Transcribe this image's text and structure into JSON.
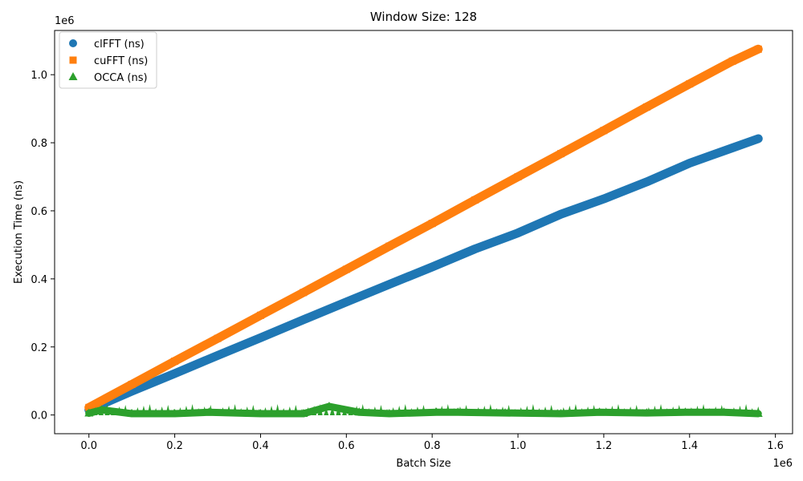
{
  "chart_data": {
    "type": "scatter",
    "title": "Window Size: 128",
    "xlabel": "Batch Size",
    "ylabel": "Execution Time (ns)",
    "x_offset_label": "1e6",
    "y_offset_label": "1e6",
    "xlim": [
      -80000,
      1640000
    ],
    "ylim": [
      -55000,
      1130000
    ],
    "x_ticks": [
      0,
      200000,
      400000,
      600000,
      800000,
      1000000,
      1200000,
      1400000,
      1600000
    ],
    "x_tick_labels": [
      "0.0",
      "0.2",
      "0.4",
      "0.6",
      "0.8",
      "1.0",
      "1.2",
      "1.4",
      "1.6"
    ],
    "y_ticks": [
      0,
      200000,
      400000,
      600000,
      800000,
      1000000
    ],
    "y_tick_labels": [
      "0.0",
      "0.2",
      "0.4",
      "0.6",
      "0.8",
      "1.0"
    ],
    "grid": false,
    "legend_position": "top-left",
    "series": [
      {
        "name": "clFFT (ns)",
        "marker": "circle",
        "color": "#1f77b4",
        "x": [
          0,
          100000,
          200000,
          300000,
          400000,
          500000,
          600000,
          700000,
          800000,
          900000,
          1000000,
          1100000,
          1200000,
          1300000,
          1400000,
          1500000,
          1560000
        ],
        "y": [
          15000,
          70000,
          122000,
          175000,
          227000,
          280000,
          332000,
          384000,
          435000,
          488000,
          535000,
          590000,
          635000,
          685000,
          740000,
          785000,
          812000
        ]
      },
      {
        "name": "cuFFT (ns)",
        "marker": "square",
        "color": "#ff7f0e",
        "x": [
          0,
          100000,
          200000,
          300000,
          400000,
          500000,
          600000,
          700000,
          800000,
          900000,
          1000000,
          1100000,
          1200000,
          1300000,
          1400000,
          1500000,
          1560000
        ],
        "y": [
          22000,
          90000,
          158000,
          225000,
          293000,
          360000,
          428000,
          496000,
          563000,
          632000,
          700000,
          768000,
          836000,
          905000,
          973000,
          1040000,
          1075000
        ]
      },
      {
        "name": "OCCA (ns)",
        "marker": "triangle",
        "color": "#2ca02c",
        "x": [
          0,
          30000,
          100000,
          200000,
          280000,
          400000,
          500000,
          560000,
          630000,
          700000,
          810000,
          860000,
          970000,
          1100000,
          1190000,
          1300000,
          1390000,
          1480000,
          1560000
        ],
        "y": [
          5000,
          15000,
          4000,
          4000,
          8000,
          4000,
          4000,
          25000,
          8000,
          4000,
          8000,
          8000,
          6000,
          4000,
          8000,
          6000,
          8000,
          8000,
          4000
        ]
      }
    ]
  }
}
